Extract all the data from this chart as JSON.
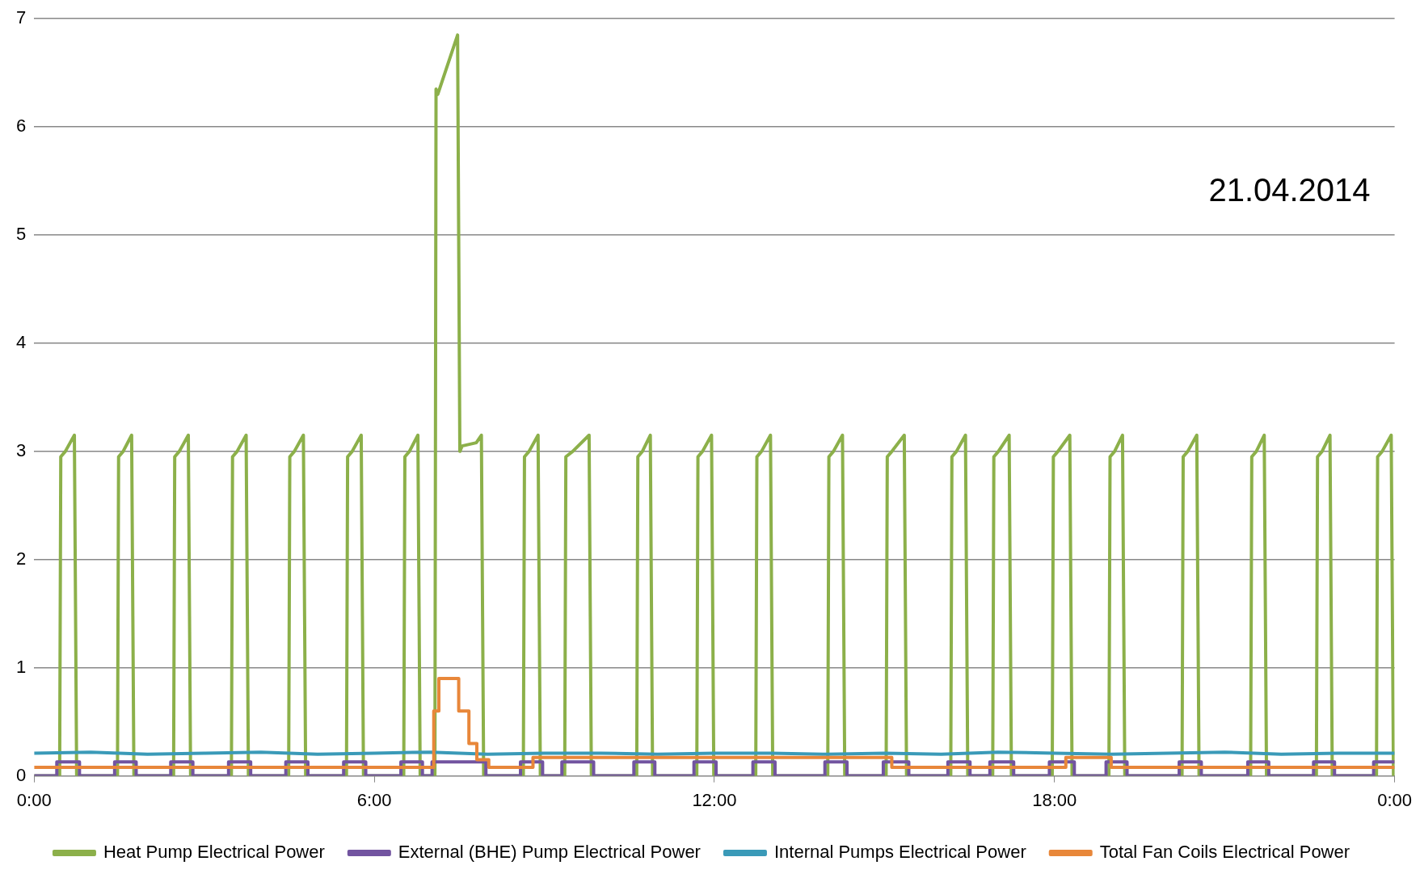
{
  "chart_data": {
    "type": "line",
    "annotations": [
      "21.04.2014"
    ],
    "xlim": [
      0,
      24
    ],
    "xticks": [
      {
        "value": 0,
        "label": "0:00"
      },
      {
        "value": 6,
        "label": "6:00"
      },
      {
        "value": 12,
        "label": "12:00"
      },
      {
        "value": 18,
        "label": "18:00"
      },
      {
        "value": 24,
        "label": "0:00"
      }
    ],
    "ylim": [
      0,
      7
    ],
    "yticks": [
      0,
      1,
      2,
      3,
      4,
      5,
      6,
      7
    ],
    "grid": "y",
    "legend": "bottom",
    "series": [
      {
        "name": "Heat Pump Electrical Power",
        "color": "#8cb04a",
        "x": [
          0,
          0.45,
          0.47,
          0.55,
          0.71,
          0.75,
          1.47,
          1.49,
          1.57,
          1.72,
          1.76,
          2.46,
          2.48,
          2.56,
          2.72,
          2.76,
          3.48,
          3.5,
          3.58,
          3.74,
          3.78,
          4.49,
          4.51,
          4.59,
          4.75,
          4.79,
          5.51,
          5.53,
          5.61,
          5.77,
          5.81,
          6.52,
          6.54,
          6.62,
          6.77,
          6.81,
          7.07,
          7.09,
          7.12,
          7.47,
          7.51,
          7.55,
          7.8,
          7.89,
          7.93,
          8.63,
          8.65,
          8.73,
          8.89,
          8.93,
          9.36,
          9.38,
          9.5,
          9.79,
          9.83,
          10.63,
          10.65,
          10.73,
          10.87,
          10.91,
          11.69,
          11.71,
          11.79,
          11.95,
          11.99,
          12.73,
          12.75,
          12.83,
          12.99,
          13.03,
          14.0,
          14.02,
          14.1,
          14.26,
          14.3,
          15.03,
          15.05,
          15.13,
          15.35,
          15.39,
          16.17,
          16.19,
          16.27,
          16.43,
          16.47,
          16.91,
          16.93,
          17.01,
          17.2,
          17.24,
          17.96,
          17.98,
          18.06,
          18.27,
          18.31,
          18.96,
          18.98,
          19.06,
          19.2,
          19.24,
          20.25,
          20.27,
          20.35,
          20.51,
          20.55,
          21.46,
          21.48,
          21.56,
          21.7,
          21.74,
          22.62,
          22.64,
          22.72,
          22.86,
          22.9,
          23.68,
          23.7,
          23.78,
          23.94,
          23.98,
          24
        ],
        "values": [
          0,
          0,
          2.95,
          3,
          3.15,
          0,
          0,
          2.95,
          3,
          3.15,
          0,
          0,
          2.95,
          3,
          3.15,
          0,
          0,
          2.95,
          3,
          3.15,
          0,
          0,
          2.95,
          3,
          3.15,
          0,
          0,
          2.95,
          3,
          3.15,
          0,
          0,
          2.95,
          3,
          3.15,
          0,
          0,
          6.35,
          6.3,
          6.85,
          3,
          3.05,
          3.08,
          3.15,
          0,
          0,
          2.95,
          3,
          3.15,
          0,
          0,
          2.95,
          3,
          3.15,
          0,
          0,
          2.95,
          3,
          3.15,
          0,
          0,
          2.95,
          3,
          3.15,
          0,
          0,
          2.95,
          3,
          3.15,
          0,
          0,
          2.95,
          3,
          3.15,
          0,
          0,
          2.95,
          3,
          3.15,
          0,
          0,
          2.95,
          3,
          3.15,
          0,
          0,
          2.95,
          3,
          3.15,
          0,
          0,
          2.95,
          3,
          3.15,
          0,
          0,
          2.95,
          3,
          3.15,
          0,
          0,
          2.95,
          3,
          3.15,
          0,
          0,
          2.95,
          3,
          3.15,
          0,
          0,
          2.95,
          3,
          3.15,
          0,
          0,
          2.95,
          3,
          3.15,
          0,
          0
        ]
      },
      {
        "name": "External (BHE) Pump Electrical Power",
        "color": "#7254a0",
        "type": "step",
        "x": [
          0,
          0.4,
          0.8,
          1.42,
          1.8,
          2.41,
          2.8,
          3.43,
          3.82,
          4.44,
          4.83,
          5.46,
          5.85,
          6.47,
          6.85,
          7.02,
          7.97,
          8.58,
          8.97,
          9.31,
          9.87,
          10.58,
          10.95,
          11.64,
          12.03,
          12.68,
          13.07,
          13.95,
          14.34,
          14.98,
          15.43,
          16.12,
          16.51,
          16.86,
          17.28,
          17.91,
          18.35,
          18.91,
          19.28,
          20.2,
          20.59,
          21.41,
          21.78,
          22.57,
          22.94,
          23.63,
          24
        ],
        "values": [
          0,
          0.13,
          0,
          0.13,
          0,
          0.13,
          0,
          0.13,
          0,
          0.13,
          0,
          0.13,
          0,
          0.13,
          0,
          0.13,
          0,
          0.13,
          0,
          0.13,
          0,
          0.13,
          0,
          0.13,
          0,
          0.13,
          0,
          0.13,
          0,
          0.13,
          0,
          0.13,
          0,
          0.13,
          0,
          0.13,
          0,
          0.13,
          0,
          0.13,
          0,
          0.13,
          0,
          0.13,
          0,
          0.13,
          0.13
        ]
      },
      {
        "name": "Internal Pumps Electrical Power",
        "color": "#3a9ab8",
        "x": [
          0,
          1,
          2,
          3,
          4,
          5,
          6,
          7,
          8,
          9,
          10,
          11,
          12,
          13,
          14,
          15,
          16,
          17,
          18,
          19,
          20,
          21,
          22,
          23,
          24
        ],
        "values": [
          0.21,
          0.22,
          0.2,
          0.21,
          0.22,
          0.2,
          0.21,
          0.22,
          0.2,
          0.21,
          0.21,
          0.2,
          0.21,
          0.21,
          0.2,
          0.21,
          0.2,
          0.22,
          0.21,
          0.2,
          0.21,
          0.22,
          0.2,
          0.21,
          0.21
        ]
      },
      {
        "name": "Total Fan Coils Electrical Power",
        "color": "#e8873a",
        "type": "step",
        "x": [
          0,
          7.05,
          7.14,
          7.49,
          7.67,
          7.81,
          8.02,
          8.8,
          15.13,
          18.2,
          19.0,
          24
        ],
        "values": [
          0.08,
          0.6,
          0.9,
          0.6,
          0.3,
          0.15,
          0.08,
          0.17,
          0.08,
          0.17,
          0.08,
          0.08
        ]
      }
    ]
  }
}
